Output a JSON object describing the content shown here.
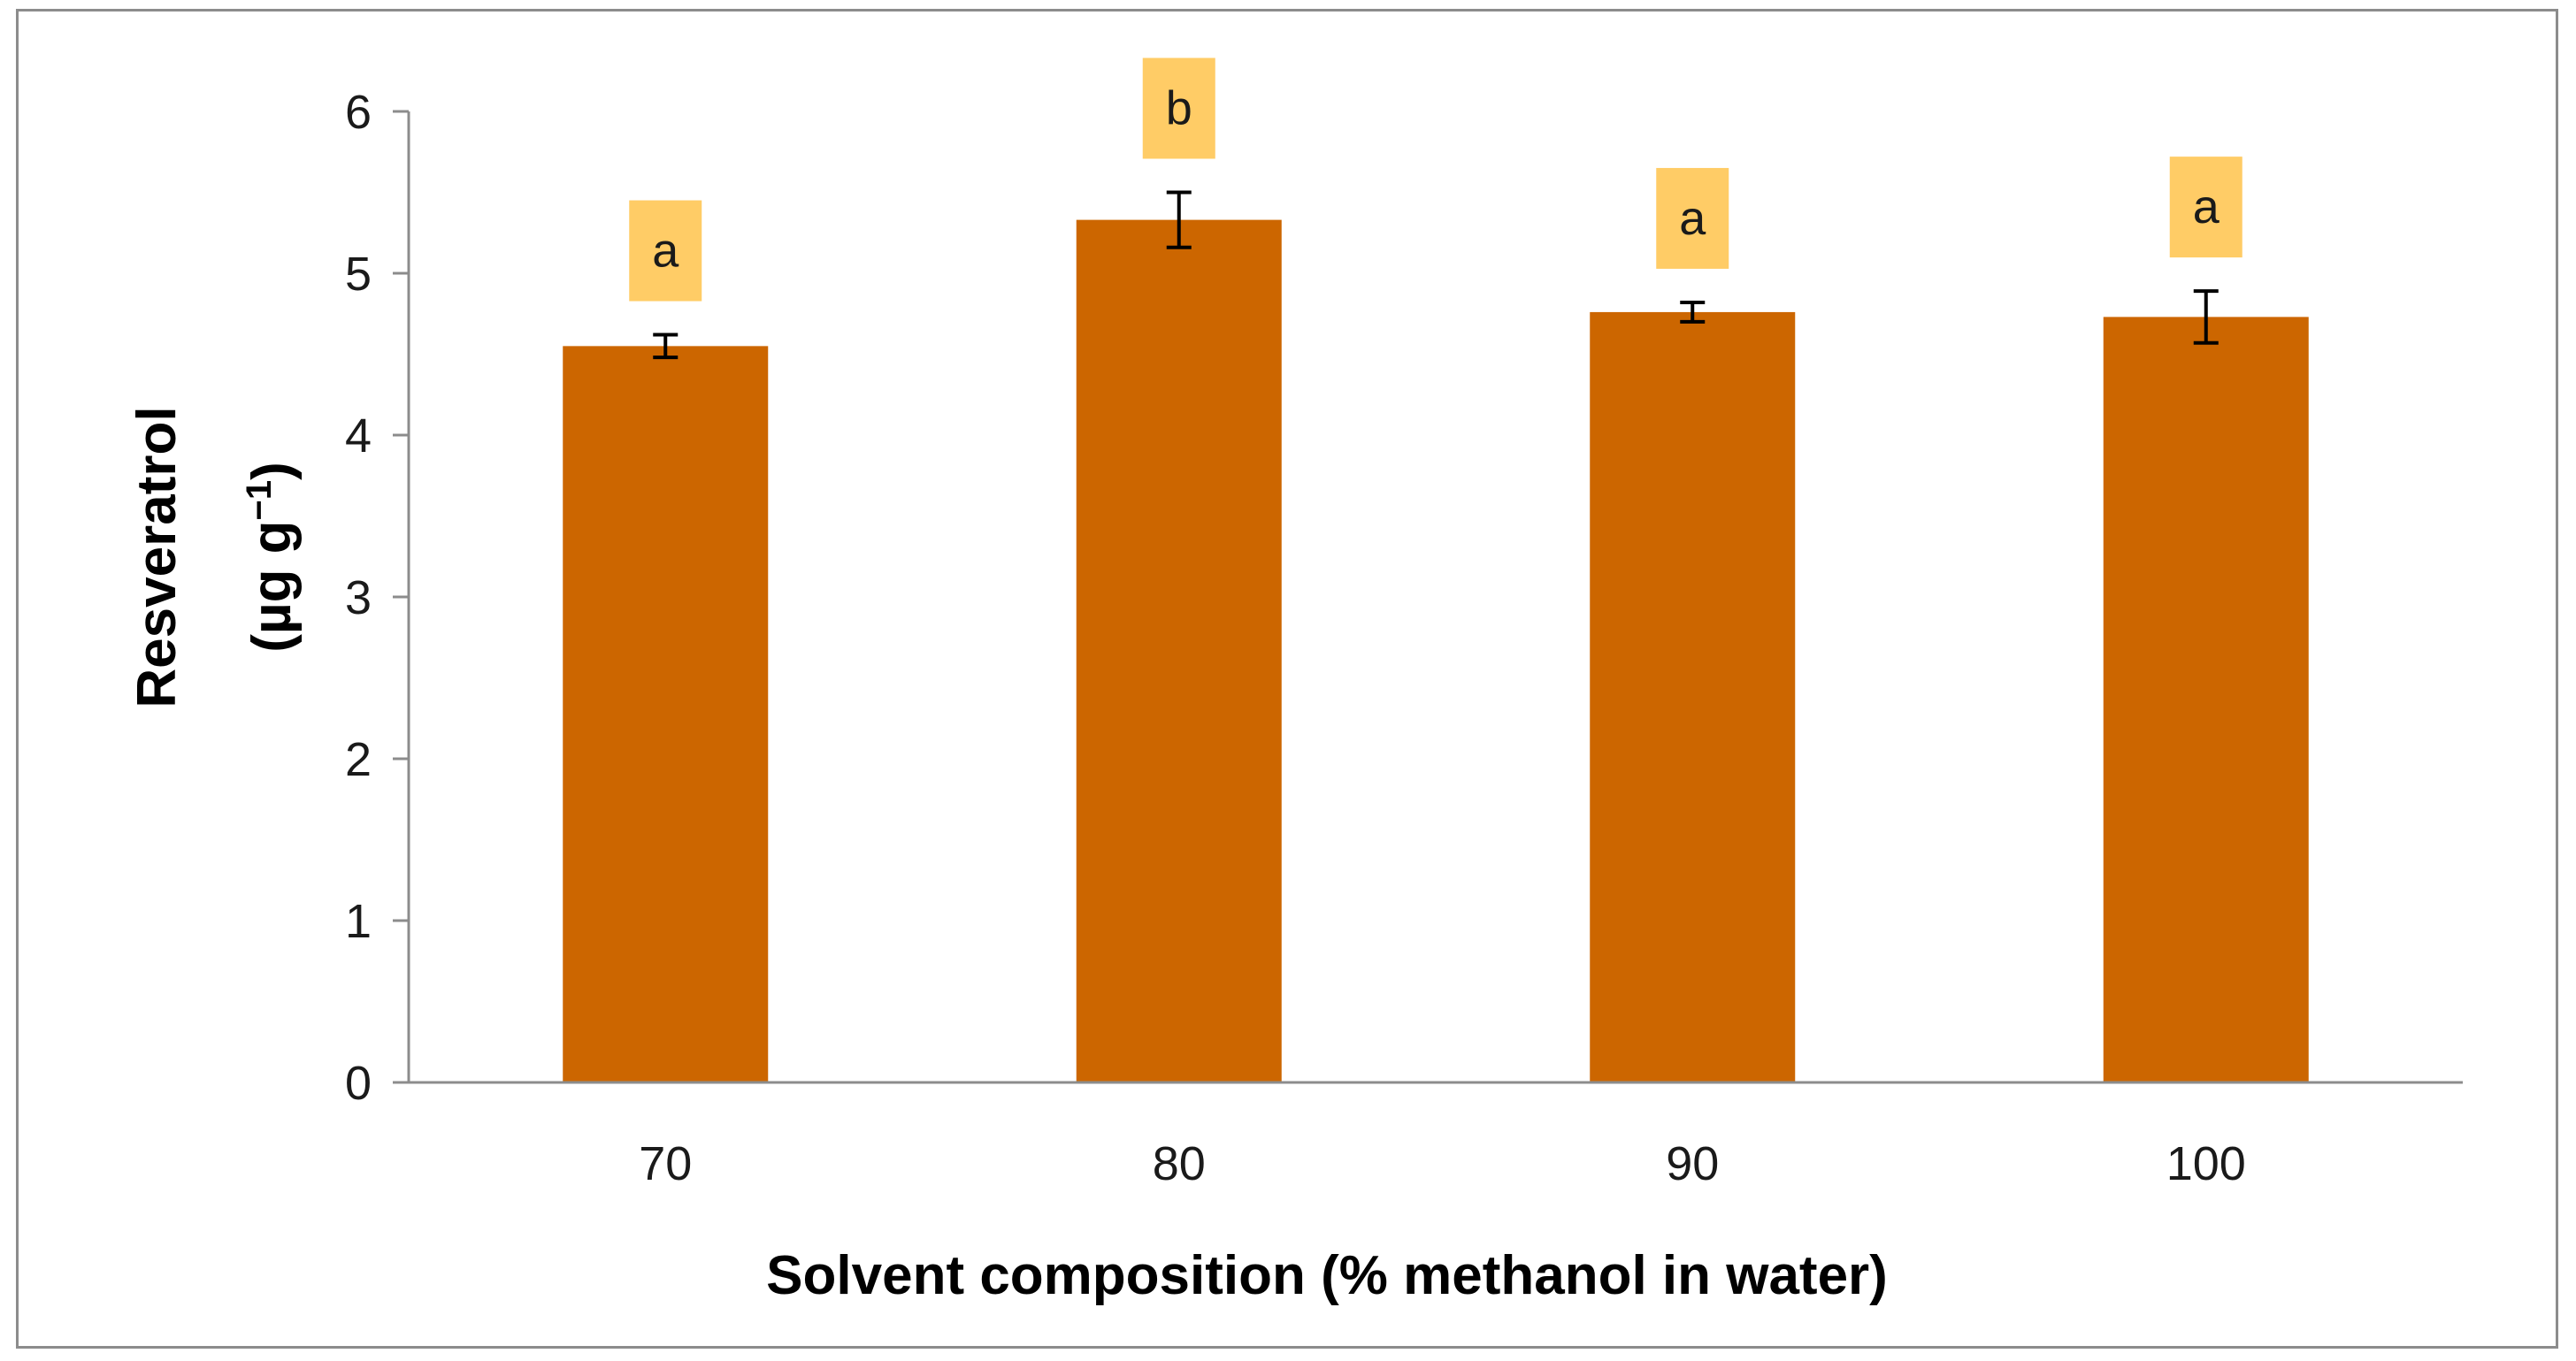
{
  "chart_data": {
    "type": "bar",
    "categories": [
      "70",
      "80",
      "90",
      "100"
    ],
    "values": [
      4.55,
      5.33,
      4.76,
      4.73
    ],
    "errors": [
      0.07,
      0.17,
      0.06,
      0.16
    ],
    "significance_letters": [
      "a",
      "b",
      "a",
      "a"
    ],
    "xlabel": "Solvent composition (% methanol in water)",
    "ylabel_line1": "Resveratrol",
    "ylabel_line2_prefix": "(µg g",
    "ylabel_superscript": "−1",
    "ylabel_line2_suffix": ")",
    "ylim": [
      0,
      6
    ],
    "yticks": [
      "0",
      "1",
      "2",
      "3",
      "4",
      "5",
      "6"
    ],
    "grid": false,
    "colors": {
      "bar": "#cc6600",
      "letter_box": "#ffcc66",
      "axis": "#8c8c8c",
      "error_bar": "#000000"
    }
  }
}
